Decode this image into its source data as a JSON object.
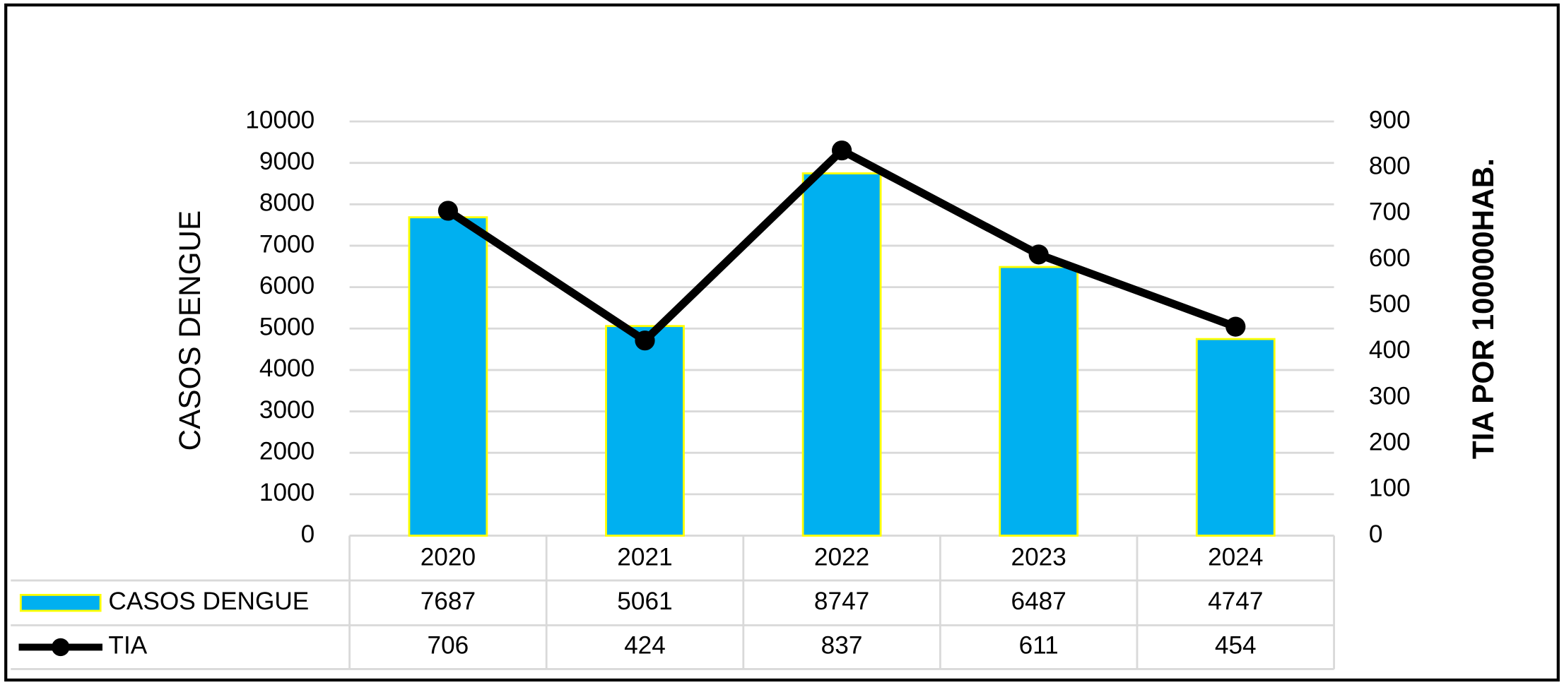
{
  "chart_data": {
    "type": "bar",
    "y_label": "CASOS DENGUE",
    "y2_label": "TIA POR 100000HAB.",
    "categories": [
      "2020",
      "2021",
      "2022",
      "2023",
      "2024"
    ],
    "series": [
      {
        "name": "CASOS DENGUE",
        "type": "bar",
        "color": "#00b0f0",
        "edge_color": "#ffff00",
        "values": [
          7687,
          5061,
          8747,
          6487,
          4747
        ]
      },
      {
        "name": "TIA",
        "type": "line",
        "axis": "y2",
        "color": "#000000",
        "values": [
          706,
          424,
          837,
          611,
          454
        ]
      }
    ],
    "ylim": [
      0,
      10000
    ],
    "yticks": [
      0,
      1000,
      2000,
      3000,
      4000,
      5000,
      6000,
      7000,
      8000,
      9000,
      10000
    ],
    "y2lim": [
      0,
      900
    ],
    "y2ticks": [
      0,
      100,
      200,
      300,
      400,
      500,
      600,
      700,
      800,
      900
    ],
    "grid": true,
    "data_table": true
  }
}
